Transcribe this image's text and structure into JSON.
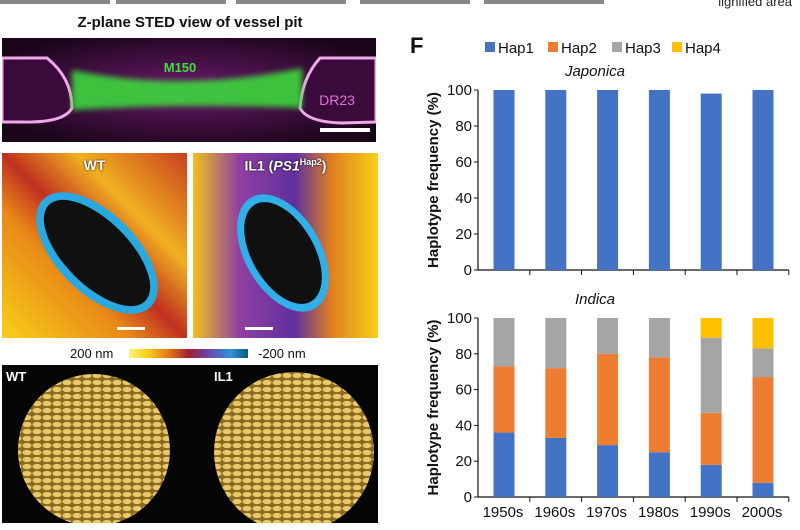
{
  "top_partial_text": "lignified area",
  "sted": {
    "title": "Z-plane STED view of vessel pit",
    "label_green": "M150",
    "label_magenta": "DR23"
  },
  "afm": {
    "wt_label": "WT",
    "il1_label": "IL1 (",
    "il1_gene": "PS1",
    "il1_sup": "Hap2",
    "il1_close": ")",
    "colorbar_min_label": "200 nm",
    "colorbar_max_label": "-200 nm"
  },
  "seeds": {
    "wt_label": "WT",
    "il1_label": "IL1"
  },
  "panel_label": "F",
  "chart_data": [
    {
      "type": "bar",
      "stacked": true,
      "title": "Japonica",
      "ylabel": "Haplotype frequency (%)",
      "ylim": [
        0,
        100
      ],
      "yticks": [
        0,
        20,
        40,
        60,
        80,
        100
      ],
      "categories": [
        "1950s",
        "1960s",
        "1970s",
        "1980s",
        "1990s",
        "2000s"
      ],
      "series": [
        {
          "name": "Hap1",
          "color": "#4472c4",
          "values": [
            100,
            100,
            100,
            100,
            98,
            100
          ]
        },
        {
          "name": "Hap2",
          "color": "#ed7d31",
          "values": [
            0,
            0,
            0,
            0,
            0,
            0
          ]
        },
        {
          "name": "Hap3",
          "color": "#a5a5a5",
          "values": [
            0,
            0,
            0,
            0,
            0,
            0
          ]
        },
        {
          "name": "Hap4",
          "color": "#ffc000",
          "values": [
            0,
            0,
            0,
            0,
            0,
            0
          ]
        }
      ],
      "legend": "top"
    },
    {
      "type": "bar",
      "stacked": true,
      "title": "Indica",
      "ylabel": "Haplotype frequency (%)",
      "ylim": [
        0,
        100
      ],
      "yticks": [
        0,
        20,
        40,
        60,
        80,
        100
      ],
      "categories": [
        "1950s",
        "1960s",
        "1970s",
        "1980s",
        "1990s",
        "2000s"
      ],
      "series": [
        {
          "name": "Hap1",
          "color": "#4472c4",
          "values": [
            36,
            33,
            29,
            25,
            18,
            8
          ]
        },
        {
          "name": "Hap2",
          "color": "#ed7d31",
          "values": [
            37,
            39,
            51,
            53,
            29,
            59
          ]
        },
        {
          "name": "Hap3",
          "color": "#a5a5a5",
          "values": [
            27,
            28,
            20,
            22,
            42,
            16
          ]
        },
        {
          "name": "Hap4",
          "color": "#ffc000",
          "values": [
            0,
            0,
            0,
            0,
            11,
            17
          ]
        }
      ]
    }
  ]
}
